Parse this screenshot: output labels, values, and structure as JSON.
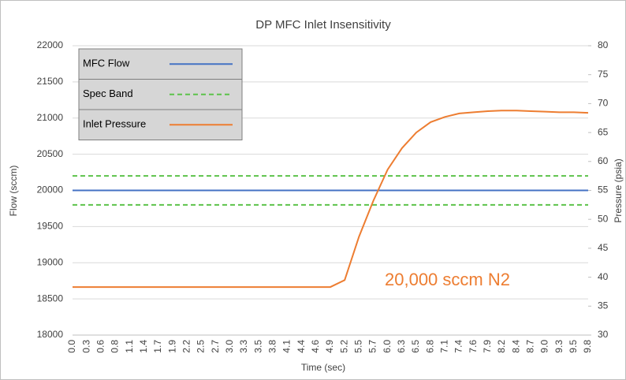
{
  "chart_data": {
    "type": "line",
    "title": "DP MFC Inlet Insensitivity",
    "xlabel": "Time (sec)",
    "ylabel": "Flow (sccm)",
    "y2label": "Pressure (psia)",
    "annotation": "20,000 sccm N2",
    "categories": [
      "0.0",
      "0.3",
      "0.6",
      "0.8",
      "1.1",
      "1.4",
      "1.7",
      "1.9",
      "2.2",
      "2.5",
      "2.7",
      "3.0",
      "3.3",
      "3.5",
      "3.8",
      "4.1",
      "4.4",
      "4.6",
      "4.9",
      "5.2",
      "5.5",
      "5.7",
      "6.0",
      "6.3",
      "6.5",
      "6.8",
      "7.1",
      "7.4",
      "7.6",
      "7.9",
      "8.2",
      "8.4",
      "8.7",
      "9.0",
      "9.3",
      "9.5",
      "9.8"
    ],
    "series": [
      {
        "name": "MFC Flow",
        "color": "#4472c4",
        "values": [
          20000,
          20000,
          20000,
          20000,
          20000,
          20000,
          20000,
          20000,
          20000,
          20000,
          20000,
          20000,
          20000,
          20000,
          20000,
          20000,
          20000,
          20000,
          20000,
          20000,
          20000,
          20000,
          20000,
          20000,
          20000,
          20000,
          20000,
          20000,
          20000,
          20000,
          20000,
          20000,
          20000,
          20000,
          20000,
          20000,
          20000
        ]
      },
      {
        "name": "Spec Band",
        "color": "#5cc24a",
        "dashed": true,
        "bounds": [
          19800,
          20200
        ]
      },
      {
        "name": "Inlet Pressure",
        "color": "#ed7d31",
        "axis": "y2",
        "values": [
          38.3,
          38.3,
          38.3,
          38.3,
          38.3,
          38.3,
          38.3,
          38.3,
          38.3,
          38.3,
          38.3,
          38.3,
          38.3,
          38.3,
          38.3,
          38.3,
          38.3,
          38.3,
          38.3,
          39.5,
          47,
          53.2,
          58.6,
          62.3,
          65,
          66.8,
          67.7,
          68.3,
          68.5,
          68.7,
          68.8,
          68.8,
          68.7,
          68.6,
          68.5,
          68.5,
          68.4
        ]
      }
    ],
    "ylim": [
      18000,
      22000
    ],
    "yticks": [
      18000,
      18500,
      19000,
      19500,
      20000,
      20500,
      21000,
      21500,
      22000
    ],
    "y2lim": [
      30,
      80
    ],
    "y2ticks": [
      30,
      35,
      40,
      45,
      50,
      55,
      60,
      65,
      70,
      75,
      80
    ],
    "grid": true,
    "legend": "upper left"
  }
}
